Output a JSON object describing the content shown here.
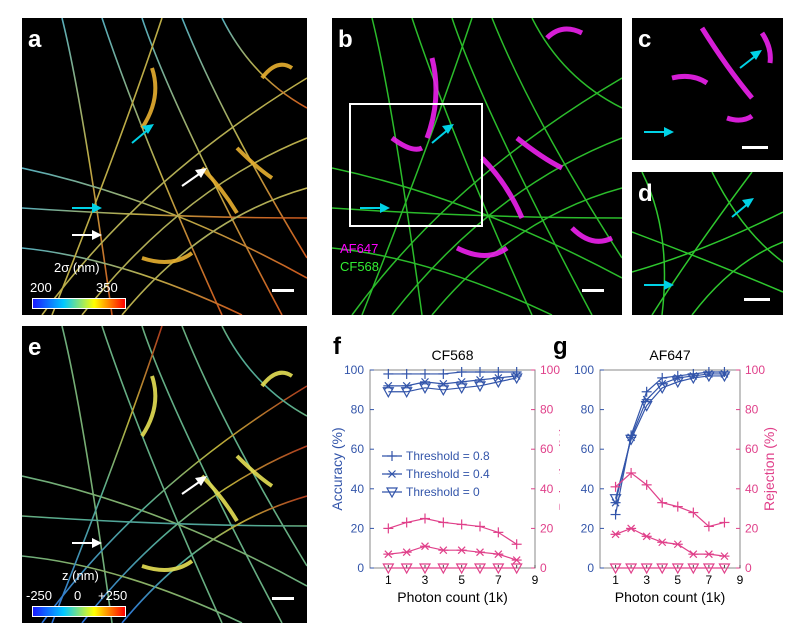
{
  "panels": {
    "a": {
      "label": "a",
      "colorbar": {
        "title": "2σ (nm)",
        "min": "200",
        "max": "350",
        "gradient": [
          "#1a1aff",
          "#00c8ff",
          "#ffff00",
          "#ff0000"
        ]
      }
    },
    "b": {
      "label": "b",
      "legend": [
        {
          "text": "AF647",
          "color": "#ff00ff"
        },
        {
          "text": "CF568",
          "color": "#33ee33"
        }
      ]
    },
    "c": {
      "label": "c"
    },
    "d": {
      "label": "d"
    },
    "e": {
      "label": "e",
      "colorbar": {
        "title": "z (nm)",
        "min": "-250",
        "mid": "0",
        "max": "+250",
        "gradient": [
          "#1a1aff",
          "#00c8ff",
          "#ffff00",
          "#ff0000"
        ]
      }
    },
    "f": {
      "label": "f"
    },
    "g": {
      "label": "g"
    }
  },
  "colors": {
    "accuracy": "#3355aa",
    "rejection": "#e0408a",
    "arrow_cyan": "#00d2e6",
    "arrow_white": "#ffffff",
    "box": "#ffffff"
  },
  "chart_data": [
    {
      "type": "line",
      "title": "CF568",
      "xlabel": "Photon count (1k)",
      "ylabel": "Accuracy (%)",
      "y2label": "Rejection (%)",
      "xlim": [
        0,
        9
      ],
      "ylim": [
        0,
        100
      ],
      "y2lim": [
        0,
        100
      ],
      "xticks": [
        "1",
        "3",
        "5",
        "7",
        "9"
      ],
      "yticks": [
        "0",
        "20",
        "40",
        "60",
        "80",
        "100"
      ],
      "y2ticks": [
        "0",
        "20",
        "40",
        "60",
        "80",
        "100"
      ],
      "x": [
        1,
        2,
        3,
        4,
        5,
        6,
        7,
        8
      ],
      "legend": [
        {
          "name": "Threshold = 0.8",
          "marker": "plus"
        },
        {
          "name": "Threshold = 0.4",
          "marker": "asterisk"
        },
        {
          "name": "Threshold = 0",
          "marker": "triangle"
        }
      ],
      "accuracy": [
        {
          "marker": "plus",
          "values": [
            98,
            98,
            98,
            98,
            99,
            99,
            99,
            99
          ]
        },
        {
          "marker": "asterisk",
          "values": [
            92,
            92,
            94,
            93,
            94,
            95,
            96,
            97
          ]
        },
        {
          "marker": "triangle",
          "values": [
            89,
            89,
            91,
            90,
            91,
            92,
            94,
            96
          ]
        }
      ],
      "rejection": [
        {
          "marker": "plus",
          "values": [
            20,
            23,
            25,
            23,
            22,
            21,
            18,
            12
          ]
        },
        {
          "marker": "asterisk",
          "values": [
            7,
            8,
            11,
            9,
            9,
            8,
            7,
            4
          ]
        },
        {
          "marker": "triangle",
          "values": [
            0,
            0,
            0,
            0,
            0,
            0,
            0,
            0
          ]
        }
      ]
    },
    {
      "type": "line",
      "title": "AF647",
      "xlabel": "Photon count (1k)",
      "ylabel": "",
      "y2label": "Rejection (%)",
      "xlim": [
        0,
        9
      ],
      "ylim": [
        0,
        100
      ],
      "y2lim": [
        0,
        100
      ],
      "xticks": [
        "1",
        "3",
        "5",
        "7",
        "9"
      ],
      "yticks": [
        "0",
        "20",
        "40",
        "60",
        "80",
        "100"
      ],
      "y2ticks": [
        "0",
        "20",
        "40",
        "60",
        "80",
        "100"
      ],
      "x": [
        1,
        2,
        3,
        4,
        5,
        6,
        7,
        8
      ],
      "accuracy": [
        {
          "marker": "plus",
          "values": [
            27,
            67,
            89,
            96,
            97,
            98,
            99,
            99
          ]
        },
        {
          "marker": "asterisk",
          "values": [
            33,
            66,
            85,
            93,
            96,
            97,
            98,
            98
          ]
        },
        {
          "marker": "triangle",
          "values": [
            35,
            65,
            82,
            91,
            94,
            96,
            97,
            97
          ]
        }
      ],
      "rejection": [
        {
          "marker": "plus",
          "values": [
            41,
            48,
            42,
            33,
            31,
            28,
            21,
            23
          ]
        },
        {
          "marker": "asterisk",
          "values": [
            17,
            20,
            16,
            13,
            12,
            7,
            7,
            6
          ]
        },
        {
          "marker": "triangle",
          "values": [
            0,
            0,
            0,
            0,
            0,
            0,
            0,
            0
          ]
        }
      ]
    }
  ]
}
